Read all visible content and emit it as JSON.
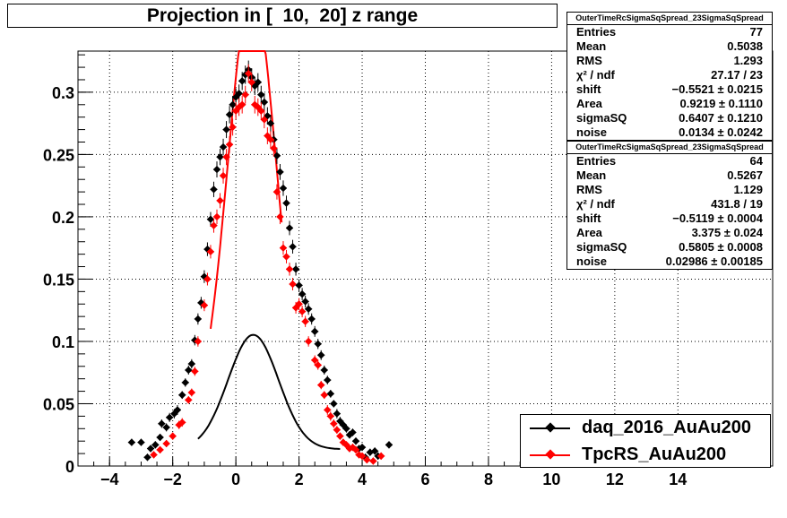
{
  "title": "Projection in [  10,  20] z range",
  "stats_boxes": [
    {
      "header": "OuterTimeRcSigmaSqSpread_23SigmaSqSpread",
      "rows": [
        {
          "key": "Entries",
          "value": "77"
        },
        {
          "key": "Mean",
          "value": "0.5038"
        },
        {
          "key": "RMS",
          "value": "1.293"
        },
        {
          "key": "χ² / ndf",
          "value": "27.17 / 23"
        },
        {
          "key": "shift",
          "value": "−0.5521 ± 0.0215"
        },
        {
          "key": "Area",
          "value": "0.9219 ± 0.1110"
        },
        {
          "key": "sigmaSQ",
          "value": "0.6407 ± 0.1210"
        },
        {
          "key": "noise",
          "value": "0.0134 ± 0.0242"
        }
      ]
    },
    {
      "header": "OuterTimeRcSigmaSqSpread_23SigmaSqSpread",
      "rows": [
        {
          "key": "Entries",
          "value": "64"
        },
        {
          "key": "Mean",
          "value": "0.5267"
        },
        {
          "key": "RMS",
          "value": "1.129"
        },
        {
          "key": "χ² / ndf",
          "value": "431.8 / 19"
        },
        {
          "key": "shift",
          "value": "−0.5119 ± 0.0004"
        },
        {
          "key": "Area",
          "value": "3.375 ± 0.024"
        },
        {
          "key": "sigmaSQ",
          "value": "0.5805 ± 0.0008"
        },
        {
          "key": "noise",
          "value": "0.02986 ± 0.00185"
        }
      ]
    }
  ],
  "legend": [
    {
      "label": "daq_2016_AuAu200",
      "color": "#000000"
    },
    {
      "label": "TpcRS_AuAu200",
      "color": "#ff0000"
    }
  ],
  "chart_data": {
    "type": "scatter",
    "title": "Projection in [  10,  20] z range",
    "xlabel": "",
    "ylabel": "",
    "xlim": [
      -5,
      17
    ],
    "ylim": [
      0,
      0.333
    ],
    "grid": true,
    "legend_position": "bottom-right",
    "x_ticks": [
      -4,
      -2,
      0,
      2,
      4,
      6,
      8,
      10,
      12,
      14
    ],
    "x_tick_labels": [
      "−4",
      "−2",
      "0",
      "2",
      "4",
      "6",
      "8",
      "10",
      "12",
      "14"
    ],
    "y_ticks": [
      0,
      0.05,
      0.1,
      0.15,
      0.2,
      0.25,
      0.3
    ],
    "y_tick_labels": [
      "0",
      "0.05",
      "0.1",
      "0.15",
      "0.2",
      "0.25",
      "0.3"
    ],
    "series": [
      {
        "name": "daq_2016_AuAu200",
        "color": "#000000",
        "points": [
          [
            -3.3,
            0.019
          ],
          [
            -3.0,
            0.019
          ],
          [
            -2.8,
            0.007
          ],
          [
            -2.7,
            0.014
          ],
          [
            -2.55,
            0.017
          ],
          [
            -2.4,
            0.023
          ],
          [
            -2.35,
            0.034
          ],
          [
            -2.2,
            0.031
          ],
          [
            -2.1,
            0.039
          ],
          [
            -1.95,
            0.042
          ],
          [
            -1.85,
            0.045
          ],
          [
            -1.7,
            0.057
          ],
          [
            -1.6,
            0.067
          ],
          [
            -1.5,
            0.077
          ],
          [
            -1.4,
            0.082
          ],
          [
            -1.3,
            0.101
          ],
          [
            -1.2,
            0.118
          ],
          [
            -1.1,
            0.131
          ],
          [
            -1.0,
            0.152
          ],
          [
            -0.9,
            0.174
          ],
          [
            -0.8,
            0.198
          ],
          [
            -0.7,
            0.222
          ],
          [
            -0.6,
            0.238
          ],
          [
            -0.5,
            0.248
          ],
          [
            -0.4,
            0.256
          ],
          [
            -0.3,
            0.27
          ],
          [
            -0.2,
            0.282
          ],
          [
            -0.1,
            0.29
          ],
          [
            0.0,
            0.296
          ],
          [
            0.1,
            0.299
          ],
          [
            0.2,
            0.309
          ],
          [
            0.3,
            0.314
          ],
          [
            0.4,
            0.318
          ],
          [
            0.5,
            0.312
          ],
          [
            0.6,
            0.305
          ],
          [
            0.7,
            0.308
          ],
          [
            0.8,
            0.298
          ],
          [
            0.9,
            0.292
          ],
          [
            1.0,
            0.281
          ],
          [
            1.1,
            0.275
          ],
          [
            1.2,
            0.262
          ],
          [
            1.3,
            0.249
          ],
          [
            1.4,
            0.236
          ],
          [
            1.5,
            0.223
          ],
          [
            1.6,
            0.211
          ],
          [
            1.7,
            0.191
          ],
          [
            1.8,
            0.176
          ],
          [
            1.9,
            0.158
          ],
          [
            2.0,
            0.145
          ],
          [
            2.1,
            0.138
          ],
          [
            2.2,
            0.132
          ],
          [
            2.3,
            0.126
          ],
          [
            2.4,
            0.118
          ],
          [
            2.5,
            0.108
          ],
          [
            2.6,
            0.098
          ],
          [
            2.7,
            0.089
          ],
          [
            2.8,
            0.077
          ],
          [
            2.9,
            0.069
          ],
          [
            3.0,
            0.058
          ],
          [
            3.1,
            0.05
          ],
          [
            3.2,
            0.042
          ],
          [
            3.3,
            0.036
          ],
          [
            3.4,
            0.033
          ],
          [
            3.5,
            0.03
          ],
          [
            3.6,
            0.025
          ],
          [
            3.7,
            0.027
          ],
          [
            3.8,
            0.02
          ],
          [
            3.9,
            0.014
          ],
          [
            4.0,
            0.015
          ],
          [
            4.1,
            0.007
          ],
          [
            4.25,
            0.011
          ],
          [
            4.4,
            0.012
          ],
          [
            4.5,
            0.008
          ],
          [
            4.85,
            0.017
          ]
        ]
      },
      {
        "name": "TpcRS_AuAu200",
        "color": "#ff0000",
        "points": [
          [
            -2.6,
            0.009
          ],
          [
            -2.4,
            0.013
          ],
          [
            -2.2,
            0.018
          ],
          [
            -2.0,
            0.024
          ],
          [
            -1.8,
            0.033
          ],
          [
            -1.7,
            0.035
          ],
          [
            -1.5,
            0.053
          ],
          [
            -1.4,
            0.059
          ],
          [
            -1.3,
            0.076
          ],
          [
            -1.2,
            0.1
          ],
          [
            -1.0,
            0.129
          ],
          [
            -0.9,
            0.15
          ],
          [
            -0.8,
            0.172
          ],
          [
            -0.7,
            0.193
          ],
          [
            -0.6,
            0.2
          ],
          [
            -0.5,
            0.213
          ],
          [
            -0.4,
            0.233
          ],
          [
            -0.3,
            0.248
          ],
          [
            -0.2,
            0.258
          ],
          [
            -0.1,
            0.272
          ],
          [
            0.0,
            0.285
          ],
          [
            0.1,
            0.288
          ],
          [
            0.2,
            0.29
          ],
          [
            0.3,
            0.298
          ],
          [
            0.4,
            0.315
          ],
          [
            0.5,
            0.308
          ],
          [
            0.6,
            0.29
          ],
          [
            0.7,
            0.288
          ],
          [
            0.8,
            0.285
          ],
          [
            0.9,
            0.278
          ],
          [
            1.0,
            0.265
          ],
          [
            1.1,
            0.262
          ],
          [
            1.2,
            0.255
          ],
          [
            1.3,
            0.22
          ],
          [
            1.4,
            0.2
          ],
          [
            1.5,
            0.175
          ],
          [
            1.6,
            0.168
          ],
          [
            1.7,
            0.158
          ],
          [
            1.8,
            0.146
          ],
          [
            1.9,
            0.127
          ],
          [
            2.0,
            0.13
          ],
          [
            2.1,
            0.124
          ],
          [
            2.2,
            0.116
          ],
          [
            2.3,
            0.1
          ],
          [
            2.5,
            0.085
          ],
          [
            2.6,
            0.081
          ],
          [
            2.7,
            0.065
          ],
          [
            2.8,
            0.057
          ],
          [
            2.9,
            0.045
          ],
          [
            3.0,
            0.04
          ],
          [
            3.1,
            0.034
          ],
          [
            3.2,
            0.029
          ],
          [
            3.3,
            0.024
          ],
          [
            3.4,
            0.019
          ],
          [
            3.5,
            0.017
          ],
          [
            3.6,
            0.014
          ],
          [
            3.7,
            0.015
          ],
          [
            3.8,
            0.013
          ],
          [
            3.9,
            0.009
          ],
          [
            4.0,
            0.008
          ],
          [
            4.15,
            0.005
          ],
          [
            4.35,
            0.004
          ],
          [
            4.6,
            0.008
          ]
        ]
      }
    ],
    "fits": [
      {
        "series": "daq_2016_AuAu200",
        "color": "#000000",
        "x_range": [
          -1.2,
          3.3
        ],
        "shift": -0.5521,
        "area": 0.9219,
        "sigmaSQ": 0.6407,
        "noise": 0.0134
      },
      {
        "series": "TpcRS_AuAu200",
        "color": "#ff0000",
        "x_range": [
          -0.8,
          1.45
        ],
        "shift": -0.5119,
        "area": 3.375,
        "sigmaSQ": 0.5805,
        "noise": 0.02986
      }
    ]
  }
}
